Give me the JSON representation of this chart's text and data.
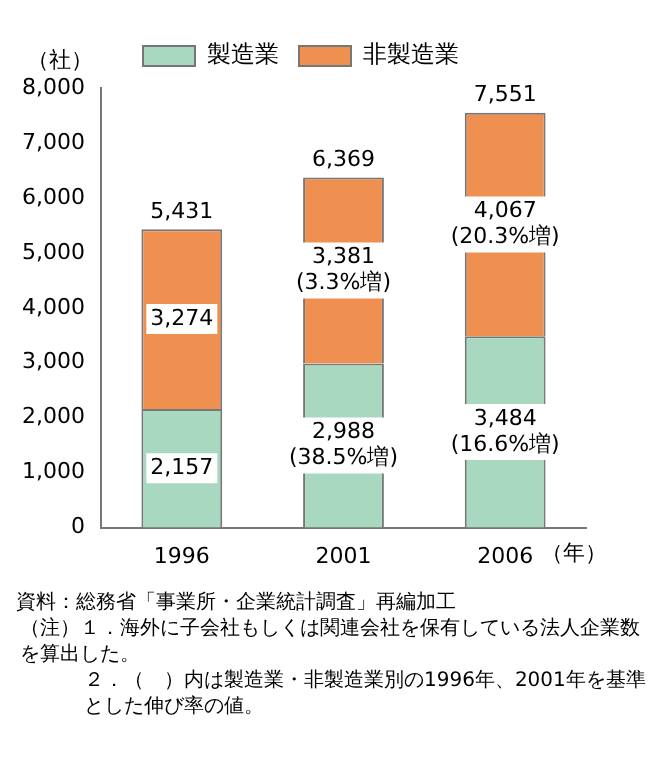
{
  "chart_data": {
    "type": "bar",
    "stacked": true,
    "categories": [
      "1996",
      "2001",
      "2006"
    ],
    "xlabel": "（年）",
    "ylabel": "（社）",
    "series": [
      {
        "name": "製造業",
        "color": "#a8d8c0",
        "values": [
          2157,
          2988,
          3484
        ],
        "value_labels": [
          "2,157",
          "2,988\n(38.5%増)",
          "3,484\n(16.6%増)"
        ]
      },
      {
        "name": "非製造業",
        "color": "#f09050",
        "values": [
          3274,
          3381,
          4067
        ],
        "value_labels": [
          "3,274",
          "3,381\n(3.3%増)",
          "4,067\n(20.3%増)"
        ]
      }
    ],
    "totals": [
      "5,431",
      "6,369",
      "7,551"
    ],
    "ylim": [
      0,
      8000
    ],
    "yticks": [
      {
        "value": 0,
        "label": "0"
      },
      {
        "value": 1000,
        "label": "1,000"
      },
      {
        "value": 2000,
        "label": "2,000"
      },
      {
        "value": 3000,
        "label": "3,000"
      },
      {
        "value": 4000,
        "label": "4,000"
      },
      {
        "value": 5000,
        "label": "5,000"
      },
      {
        "value": 6000,
        "label": "6,000"
      },
      {
        "value": 7000,
        "label": "7,000"
      },
      {
        "value": 8000,
        "label": "8,000"
      }
    ],
    "grid": false,
    "legend": "top",
    "annotations": [
      "資料：総務省「事業所・企業統計調査」再編加工",
      "（注）１．海外に子会社もしくは関連会社を保有している法人企業数を算出した。",
      "２．（　）内は製造業・非製造業別の1996年、2001年を基準とした伸び率の値。"
    ]
  }
}
